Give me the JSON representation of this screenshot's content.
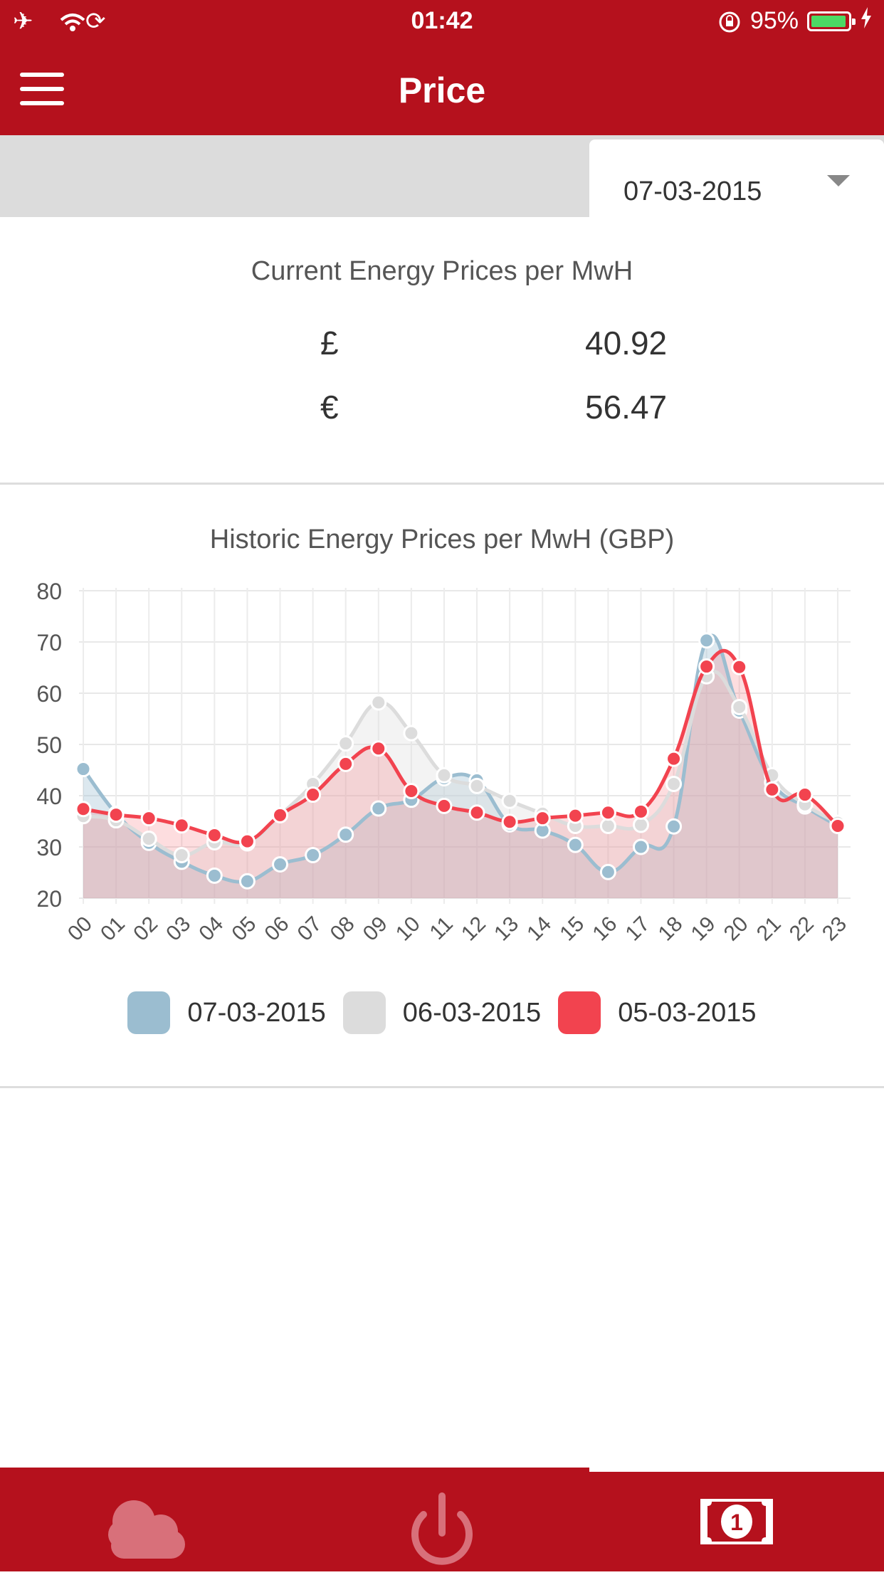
{
  "status_bar": {
    "time": "01:42",
    "battery": "95%",
    "battery_level": 0.95
  },
  "header": {
    "title": "Price"
  },
  "date_selector": {
    "value": "07-03-2015"
  },
  "current_prices": {
    "heading": "Current Energy Prices per MwH",
    "rows": [
      {
        "currency": "£",
        "value": "40.92"
      },
      {
        "currency": "€",
        "value": "56.47"
      }
    ]
  },
  "historic": {
    "heading": "Historic Energy Prices per MwH (GBP)"
  },
  "chart_data": {
    "type": "area",
    "title": "Historic Energy Prices per MwH (GBP)",
    "categories": [
      "00",
      "01",
      "02",
      "03",
      "04",
      "05",
      "06",
      "07",
      "08",
      "09",
      "10",
      "11",
      "12",
      "13",
      "14",
      "15",
      "16",
      "17",
      "18",
      "19",
      "20",
      "21",
      "22",
      "23"
    ],
    "ylim": [
      20,
      80
    ],
    "yticks": [
      "80",
      "70",
      "60",
      "50",
      "40",
      "30",
      "20"
    ],
    "grid": true,
    "legend_position": "bottom",
    "series": [
      {
        "name": "07-03-2015",
        "color": "#9bbdd0",
        "values": [
          45.2,
          36.5,
          30.8,
          27.1,
          24.4,
          23.3,
          26.6,
          28.4,
          32.4,
          37.5,
          39.2,
          43.4,
          43.0,
          34.4,
          33.2,
          30.4,
          25.1,
          30.0,
          34.0,
          70.3,
          56.6,
          42.6,
          37.9,
          34.1
        ]
      },
      {
        "name": "06-03-2015",
        "color": "#dcdcdc",
        "values": [
          36.0,
          35.2,
          31.6,
          28.4,
          30.9,
          30.7,
          36.2,
          42.3,
          50.2,
          58.2,
          52.2,
          44.0,
          41.9,
          39.0,
          36.5,
          34.1,
          34.1,
          34.3,
          42.3,
          63.3,
          57.3,
          44.0,
          38.3,
          34.7
        ]
      },
      {
        "name": "05-03-2015",
        "color": "#f2434f",
        "values": [
          37.4,
          36.3,
          35.6,
          34.2,
          32.3,
          31.1,
          36.2,
          40.2,
          46.2,
          49.2,
          40.9,
          38.0,
          36.7,
          34.9,
          35.6,
          36.1,
          36.7,
          36.9,
          47.2,
          65.2,
          65.1,
          41.2,
          40.2,
          34.1
        ]
      }
    ]
  },
  "tabs": [
    {
      "name": "weather",
      "icon": "cloud-icon"
    },
    {
      "name": "power",
      "icon": "power-icon"
    },
    {
      "name": "price",
      "icon": "banknote-icon",
      "active": true
    }
  ]
}
